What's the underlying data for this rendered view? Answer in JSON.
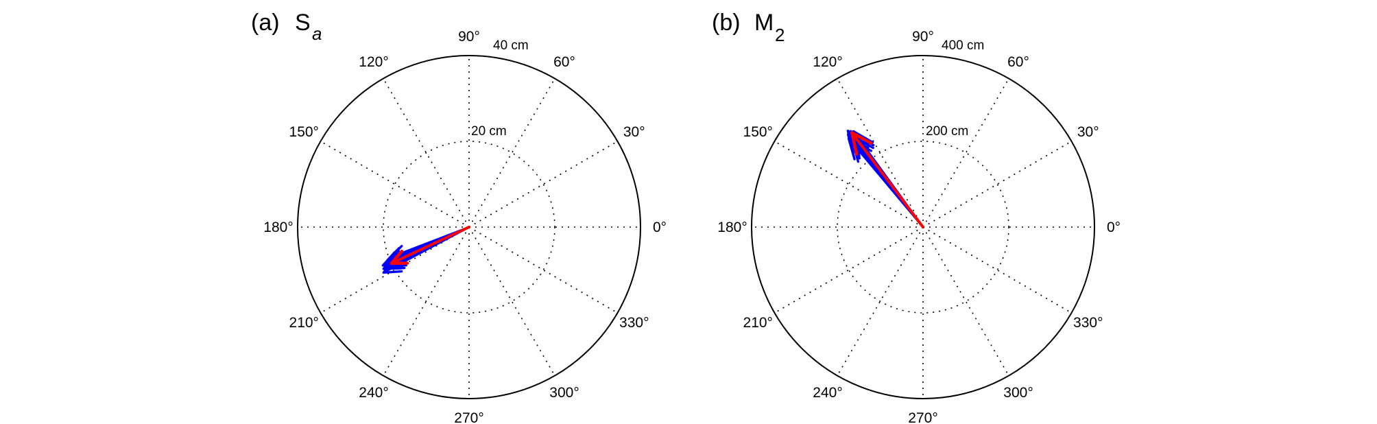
{
  "chart_data": [
    {
      "type": "compass",
      "panel_label": "(a)",
      "title_main": "S",
      "title_sub": "a",
      "angle_ticks": [
        "0°",
        "30°",
        "60°",
        "90°",
        "120°",
        "150°",
        "180°",
        "210°",
        "240°",
        "270°",
        "300°",
        "330°"
      ],
      "radial_unit": "cm",
      "rmax": 40,
      "ring_labels": [
        "20 cm",
        "40 cm"
      ],
      "ring_values": [
        20,
        40
      ],
      "grid": true,
      "series": [
        {
          "color": "#0000ff",
          "vectors": [
            {
              "angle": 202,
              "magnitude": 20.5
            },
            {
              "angle": 203,
              "magnitude": 21.0
            },
            {
              "angle": 204,
              "magnitude": 20.8
            },
            {
              "angle": 205,
              "magnitude": 21.6
            },
            {
              "angle": 206,
              "magnitude": 22.2
            },
            {
              "angle": 207,
              "magnitude": 21.4
            },
            {
              "angle": 208,
              "magnitude": 22.6
            },
            {
              "angle": 201,
              "magnitude": 19.6
            },
            {
              "angle": 206,
              "magnitude": 20.6
            },
            {
              "angle": 204,
              "magnitude": 22.0
            }
          ]
        },
        {
          "color": "#ff0000",
          "vectors": [
            {
              "angle": 205,
              "magnitude": 20.0
            }
          ]
        }
      ]
    },
    {
      "type": "compass",
      "panel_label": "(b)",
      "title_main": "M",
      "title_sub": "2",
      "angle_ticks": [
        "0°",
        "30°",
        "60°",
        "90°",
        "120°",
        "150°",
        "180°",
        "210°",
        "240°",
        "270°",
        "300°",
        "330°"
      ],
      "radial_unit": "cm",
      "rmax": 400,
      "ring_labels": [
        "200 cm",
        "400 cm"
      ],
      "ring_values": [
        200,
        400
      ],
      "grid": true,
      "series": [
        {
          "color": "#0000ff",
          "vectors": [
            {
              "angle": 126,
              "magnitude": 276
            },
            {
              "angle": 127,
              "magnitude": 280
            },
            {
              "angle": 128,
              "magnitude": 285
            },
            {
              "angle": 129,
              "magnitude": 278
            },
            {
              "angle": 130,
              "magnitude": 270
            },
            {
              "angle": 127.5,
              "magnitude": 262
            },
            {
              "angle": 129.5,
              "magnitude": 258
            },
            {
              "angle": 126.5,
              "magnitude": 268
            }
          ]
        },
        {
          "color": "#ff0000",
          "vectors": [
            {
              "angle": 127,
              "magnitude": 276
            }
          ]
        }
      ]
    }
  ]
}
